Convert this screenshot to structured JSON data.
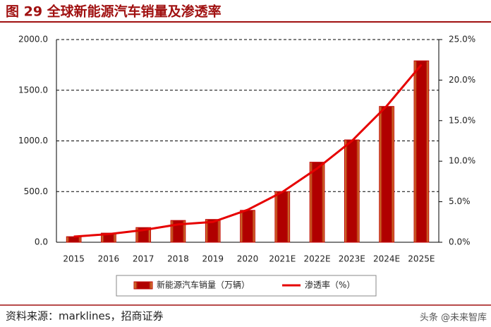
{
  "chart_data": {
    "type": "bar-line",
    "title": "图 29  全球新能源汽车销量及渗透率",
    "source": "资料来源：marklines，招商证券",
    "watermark": "头条 @未来智库",
    "categories": [
      "2015",
      "2016",
      "2017",
      "2018",
      "2019",
      "2020",
      "2021E",
      "2022E",
      "2023E",
      "2024E",
      "2025E"
    ],
    "series": [
      {
        "name": "新能源汽车销量（万辆）",
        "type": "bar",
        "color": "#c00000",
        "values": [
          55,
          90,
          145,
          215,
          225,
          315,
          500,
          790,
          1010,
          1340,
          1790
        ]
      },
      {
        "name": "渗透率（%）",
        "type": "line",
        "axis": "y2",
        "color": "#e60000",
        "values": [
          0.7,
          1.0,
          1.5,
          2.2,
          2.5,
          4.0,
          6.2,
          9.1,
          12.5,
          16.8,
          21.9
        ]
      }
    ],
    "ylim": [
      0,
      2000
    ],
    "yticks": [
      {
        "value": 0,
        "label": "0.0"
      },
      {
        "value": 500,
        "label": "500.0"
      },
      {
        "value": 1000,
        "label": "1000.0"
      },
      {
        "value": 1500,
        "label": "1500.0"
      },
      {
        "value": 2000,
        "label": "2000.0"
      }
    ],
    "y2lim": [
      0,
      25
    ],
    "y2ticks": [
      {
        "value": 0,
        "label": "0.0%"
      },
      {
        "value": 5,
        "label": "5.0%"
      },
      {
        "value": 10,
        "label": "10.0%"
      },
      {
        "value": 15,
        "label": "15.0%"
      },
      {
        "value": 20,
        "label": "20.0%"
      },
      {
        "value": 25,
        "label": "25.0%"
      }
    ],
    "grid": true
  }
}
